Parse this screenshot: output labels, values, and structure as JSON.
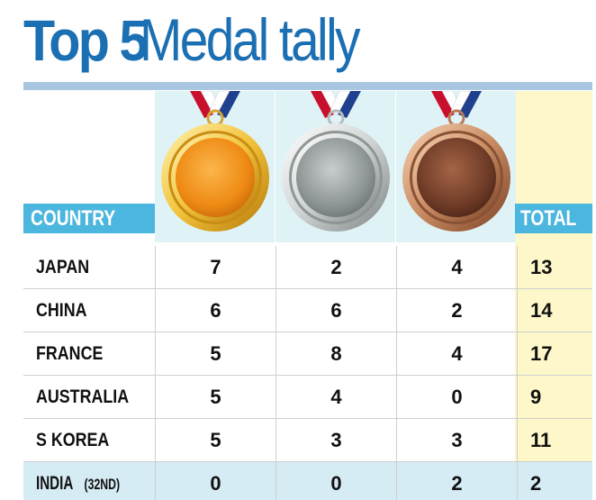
{
  "title": {
    "bold": "Top 5",
    "light": "Medal tally"
  },
  "header": {
    "country": "COUNTRY",
    "total": "TOTAL"
  },
  "medals": [
    "gold-medal",
    "silver-medal",
    "bronze-medal"
  ],
  "colors": {
    "title": "#1b6fb3",
    "header_bg": "#4bb6de",
    "medal_column_bg": "#dff3f7",
    "total_column_bg": "#fdf7c9",
    "highlight_row_bg": "#d6ecf5"
  },
  "rows": [
    {
      "country": "JAPAN",
      "suffix": "",
      "gold": "7",
      "silver": "2",
      "bronze": "4",
      "total": "13"
    },
    {
      "country": "CHINA",
      "suffix": "",
      "gold": "6",
      "silver": "6",
      "bronze": "2",
      "total": "14"
    },
    {
      "country": "FRANCE",
      "suffix": "",
      "gold": "5",
      "silver": "8",
      "bronze": "4",
      "total": "17"
    },
    {
      "country": "AUSTRALIA",
      "suffix": "",
      "gold": "5",
      "silver": "4",
      "bronze": "0",
      "total": "9"
    },
    {
      "country": "S KOREA",
      "suffix": "",
      "gold": "5",
      "silver": "3",
      "bronze": "3",
      "total": "11"
    },
    {
      "country": "INDIA",
      "suffix": "(32ND)",
      "gold": "0",
      "silver": "0",
      "bronze": "2",
      "total": "2"
    }
  ]
}
